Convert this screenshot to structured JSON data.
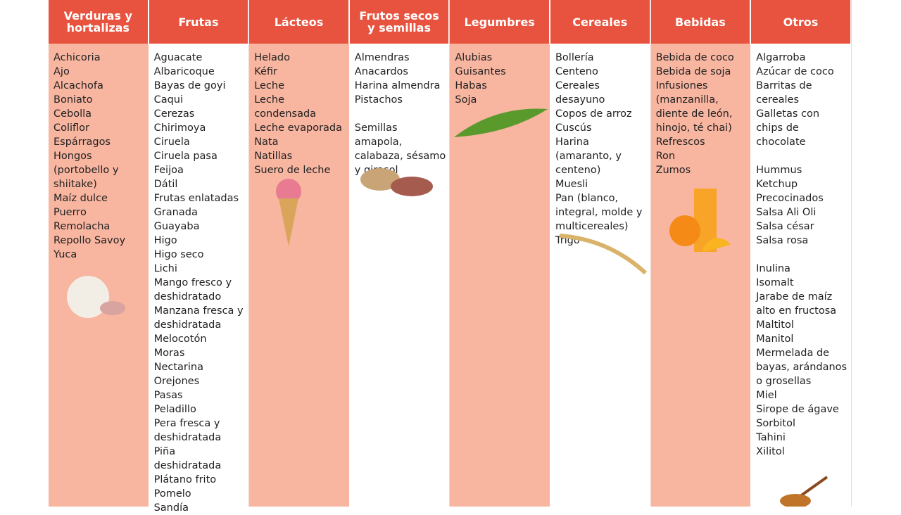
{
  "columns": [
    {
      "header": "Verduras y hortalizas",
      "groups": [
        [
          "Achicoria",
          "Ajo",
          "Alcachofa",
          "Boniato",
          "Cebolla",
          "Coliflor",
          "Espárragos",
          "Hongos (portobello y shiitake)",
          "Maíz dulce",
          "Puerro",
          "Remolacha",
          "Repollo Savoy",
          "Yuca"
        ]
      ]
    },
    {
      "header": "Frutas",
      "groups": [
        [
          "Aguacate",
          "Albaricoque",
          "Bayas de goyi",
          "Caqui",
          "Cerezas",
          "Chirimoya",
          "Ciruela",
          "Ciruela pasa Feijoa",
          "Dátil",
          "Frutas enlatadas",
          "Granada",
          "Guayaba",
          "Higo",
          "Higo seco",
          "Lichi",
          "Mango fresco y deshidratado",
          "Manzana fresca y deshidratada",
          "Melocotón",
          "Moras",
          "Nectarina",
          "Orejones",
          "Pasas",
          "Peladillo",
          "Pera fresca y deshidratada",
          "Piña deshidratada",
          "Plátano frito",
          "Pomelo",
          "Sandía"
        ]
      ]
    },
    {
      "header": "Lácteos",
      "groups": [
        [
          "Helado",
          "Kéfir",
          "Leche",
          "Leche condensada",
          "Leche evaporada",
          "Nata",
          "Natillas",
          "Suero de leche"
        ]
      ]
    },
    {
      "header": "Frutos secos y semillas",
      "groups": [
        [
          "Almendras",
          "Anacardos",
          "Harina almendra",
          "Pistachos"
        ],
        [
          "Semillas amapola, calabaza, sésamo y girasol"
        ]
      ]
    },
    {
      "header": "Legumbres",
      "groups": [
        [
          "Alubias",
          "Guisantes",
          "Habas",
          "Soja"
        ]
      ]
    },
    {
      "header": "Cereales",
      "groups": [
        [
          "Bollería",
          "Centeno",
          "Cereales desayuno",
          "Copos de arroz",
          "Cuscús",
          "Harina (amaranto, y centeno)",
          "Muesli",
          "Pan (blanco, integral, molde y multicereales)",
          "Trigo"
        ]
      ]
    },
    {
      "header": "Bebidas",
      "groups": [
        [
          "Bebida de coco",
          "Bebida de soja",
          "Infusiones (manzanilla, diente de león, hinojo, té chai)",
          "Refrescos",
          "Ron",
          "Zumos"
        ]
      ]
    },
    {
      "header": "Otros",
      "groups": [
        [
          "Algarroba",
          "Azúcar de coco",
          "Barritas de cereales",
          "Galletas con chips de chocolate"
        ],
        [
          "Hummus",
          "Ketchup",
          "Precocinados",
          "Salsa Ali Oli",
          "Salsa césar",
          "Salsa rosa"
        ],
        [
          "Inulina",
          "Isomalt",
          "Jarabe de maíz alto en fructosa",
          "Maltitol",
          "Manitol",
          "Mermelada de bayas, arándanos o grosellas",
          "Miel",
          "Sirope de ágave",
          "Sorbitol",
          "Tahini",
          "Xilitol"
        ]
      ]
    }
  ]
}
